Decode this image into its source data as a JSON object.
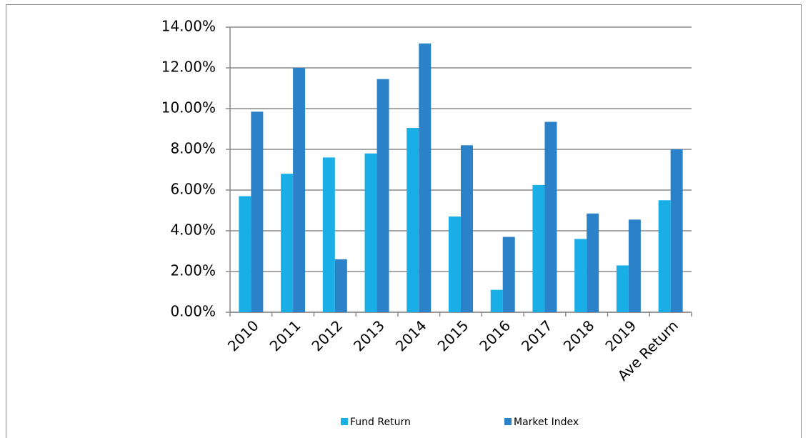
{
  "chart_data": {
    "type": "bar",
    "categories": [
      "2010",
      "2011",
      "2012",
      "2013",
      "2014",
      "2015",
      "2016",
      "2017",
      "2018",
      "2019",
      "Ave Return"
    ],
    "series": [
      {
        "name": "Fund Return",
        "color": "#1aaee6",
        "values": [
          5.7,
          6.8,
          7.6,
          7.8,
          9.05,
          4.7,
          1.1,
          6.25,
          3.6,
          2.3,
          5.5
        ]
      },
      {
        "name": "Market Index",
        "color": "#2b82c8",
        "values": [
          9.85,
          12.0,
          2.6,
          11.45,
          13.2,
          8.2,
          3.7,
          9.35,
          4.85,
          4.55,
          8.0
        ]
      }
    ],
    "ylim": [
      0,
      14
    ],
    "yticks": [
      {
        "value": 0,
        "label": "0.00%"
      },
      {
        "value": 2,
        "label": "2.00%"
      },
      {
        "value": 4,
        "label": "4.00%"
      },
      {
        "value": 6,
        "label": "6.00%"
      },
      {
        "value": 8,
        "label": "8.00%"
      },
      {
        "value": 10,
        "label": "10.00%"
      },
      {
        "value": 12,
        "label": "12.00%"
      },
      {
        "value": 14,
        "label": "14.00%"
      }
    ],
    "grid": true,
    "legend": "bottom"
  }
}
